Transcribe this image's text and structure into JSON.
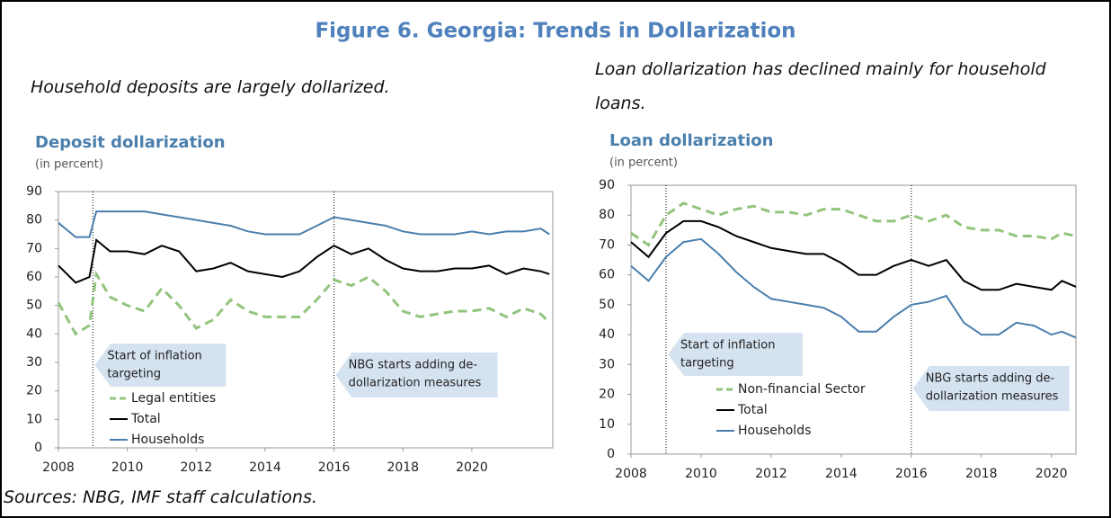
{
  "figure_title": "Figure 6. Georgia: Trends in Dollarization",
  "captions": [
    "Household deposits are largely dollarized.",
    "Loan dollarization has declined mainly for household loans."
  ],
  "source": "Sources: NBG, IMF staff calculations.",
  "chart_data": [
    {
      "type": "line",
      "title": "Deposit dollarization",
      "subtitle": "(in percent)",
      "x": [
        2008,
        2008.5,
        2008.9,
        2009.1,
        2009.5,
        2010,
        2010.5,
        2011,
        2011.5,
        2012,
        2012.5,
        2013,
        2013.5,
        2014,
        2014.5,
        2015,
        2015.5,
        2016,
        2016.5,
        2017,
        2017.5,
        2018,
        2018.5,
        2019,
        2019.5,
        2020,
        2020.5,
        2021,
        2021.5,
        2022,
        2022.25
      ],
      "series": [
        {
          "name": "Legal entities",
          "color": "#93c47d",
          "dashed": true,
          "values": [
            51,
            40,
            43,
            61,
            53,
            50,
            48,
            56,
            50,
            42,
            45,
            52,
            48,
            46,
            46,
            46,
            52,
            59,
            57,
            60,
            55,
            48,
            46,
            47,
            48,
            48,
            49,
            46,
            49,
            47,
            44
          ]
        },
        {
          "name": "Total",
          "color": "#000000",
          "dashed": false,
          "values": [
            64,
            58,
            60,
            73,
            69,
            69,
            68,
            71,
            69,
            62,
            63,
            65,
            62,
            61,
            60,
            62,
            67,
            71,
            68,
            70,
            66,
            63,
            62,
            62,
            63,
            63,
            64,
            61,
            63,
            62,
            61
          ]
        },
        {
          "name": "Households",
          "color": "#4a7fad",
          "dashed": false,
          "values": [
            79,
            74,
            74,
            83,
            83,
            83,
            83,
            82,
            81,
            80,
            79,
            78,
            76,
            75,
            75,
            75,
            78,
            81,
            80,
            79,
            78,
            76,
            75,
            75,
            75,
            76,
            75,
            76,
            76,
            77,
            75
          ]
        }
      ],
      "xlim": [
        2008,
        2022.35
      ],
      "xticks": [
        2008,
        2010,
        2012,
        2014,
        2016,
        2018,
        2020
      ],
      "ylim": [
        0,
        90
      ],
      "yticks": [
        0,
        10,
        20,
        30,
        40,
        50,
        60,
        70,
        80,
        90
      ],
      "vlines": [
        2009,
        2016
      ],
      "annotations": [
        {
          "lines": [
            "Start of inflation",
            "targeting"
          ]
        },
        {
          "lines": [
            "NBG starts adding de-",
            "dollarization measures"
          ]
        }
      ],
      "legend": "lower left"
    },
    {
      "type": "line",
      "title": "Loan dollarization",
      "subtitle": "(in percent)",
      "x": [
        2008,
        2008.5,
        2009,
        2009.5,
        2010,
        2010.5,
        2011,
        2011.5,
        2012,
        2012.5,
        2013,
        2013.5,
        2014,
        2014.5,
        2015,
        2015.5,
        2016,
        2016.5,
        2017,
        2017.5,
        2018,
        2018.5,
        2019,
        2019.5,
        2020,
        2020.3,
        2020.7
      ],
      "series": [
        {
          "name": "Non-financial Sector",
          "color": "#93c47d",
          "dashed": true,
          "values": [
            74,
            70,
            80,
            84,
            82,
            80,
            82,
            83,
            81,
            81,
            80,
            82,
            82,
            80,
            78,
            78,
            80,
            78,
            80,
            76,
            75,
            75,
            73,
            73,
            72,
            74,
            73
          ]
        },
        {
          "name": "Total",
          "color": "#000000",
          "dashed": false,
          "values": [
            71,
            66,
            74,
            78,
            78,
            76,
            73,
            71,
            69,
            68,
            67,
            67,
            64,
            60,
            60,
            63,
            65,
            63,
            65,
            58,
            55,
            55,
            57,
            56,
            55,
            58,
            56
          ]
        },
        {
          "name": "Households",
          "color": "#4a7fad",
          "dashed": false,
          "values": [
            63,
            58,
            66,
            71,
            72,
            67,
            61,
            56,
            52,
            51,
            50,
            49,
            46,
            41,
            41,
            46,
            50,
            51,
            53,
            44,
            40,
            40,
            44,
            43,
            40,
            41,
            39
          ]
        }
      ],
      "xlim": [
        2008,
        2020.7
      ],
      "xticks": [
        2008,
        2010,
        2012,
        2014,
        2016,
        2018,
        2020
      ],
      "ylim": [
        0,
        90
      ],
      "yticks": [
        0,
        10,
        20,
        30,
        40,
        50,
        60,
        70,
        80,
        90
      ],
      "vlines": [
        2009,
        2016
      ],
      "annotations": [
        {
          "lines": [
            "Start of inflation",
            "targeting"
          ]
        },
        {
          "lines": [
            "NBG starts adding de-",
            "dollarization measures"
          ]
        }
      ],
      "legend": "lower left"
    }
  ]
}
